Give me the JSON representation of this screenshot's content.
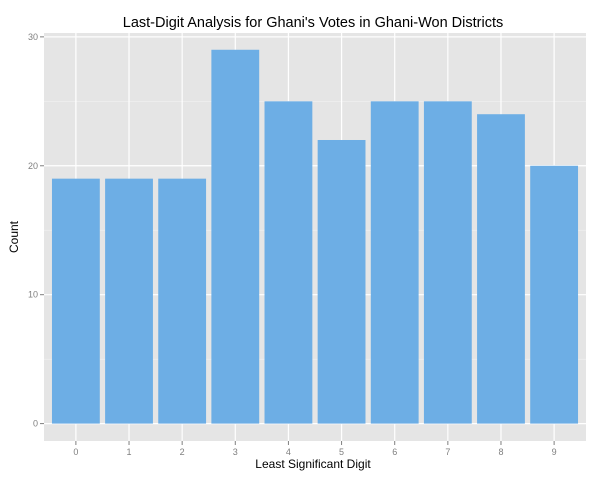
{
  "chart_data": {
    "type": "bar",
    "title": "Last-Digit Analysis for Ghani's Votes in Ghani-Won Districts",
    "xlabel": "Least Significant Digit",
    "ylabel": "Count",
    "categories": [
      "0",
      "1",
      "2",
      "3",
      "4",
      "5",
      "6",
      "7",
      "8",
      "9"
    ],
    "values": [
      19,
      19,
      19,
      29,
      25,
      22,
      25,
      25,
      24,
      20
    ],
    "ylim": [
      0,
      30.3
    ],
    "yticks": [
      0,
      10,
      20,
      30
    ],
    "ytick_labels": [
      "0",
      "10",
      "20",
      "30"
    ],
    "grid": true,
    "legend": "none",
    "colors": {
      "bar": "#6daee5",
      "panel": "#e5e5e5",
      "grid_major": "#ffffff",
      "grid_minor": "#f2f2f2",
      "tick_text": "#7f7f7f"
    }
  }
}
